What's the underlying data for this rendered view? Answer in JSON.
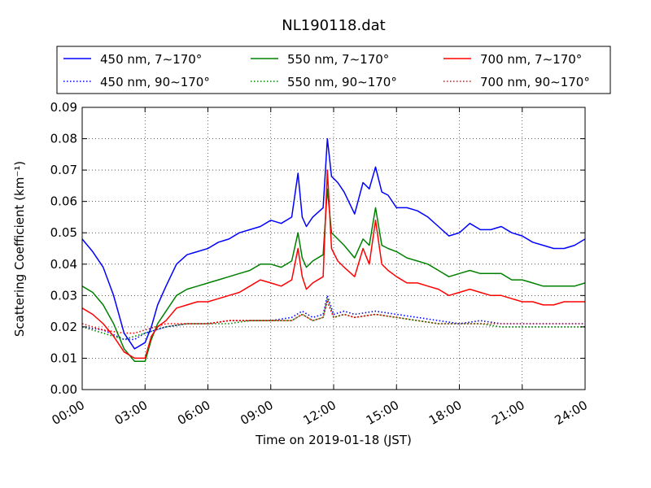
{
  "chart_data": {
    "type": "line",
    "title": "NL190118.dat",
    "xlabel": "Time on 2019-01-18 (JST)",
    "ylabel": "Scattering Coefficient (km⁻¹)",
    "xlim": [
      "00:00",
      "24:00"
    ],
    "ylim": [
      0,
      0.09
    ],
    "grid": true,
    "legend": "top",
    "x_ticks": [
      "00:00",
      "03:00",
      "06:00",
      "09:00",
      "12:00",
      "15:00",
      "18:00",
      "21:00",
      "24:00"
    ],
    "y_ticks": [
      "0.00",
      "0.01",
      "0.02",
      "0.03",
      "0.04",
      "0.05",
      "0.06",
      "0.07",
      "0.08",
      "0.09"
    ],
    "x_unit": "hours",
    "series": [
      {
        "name": "450 nm, 7∼170°",
        "color": "#0000ff",
        "style": "solid",
        "x": [
          0,
          0.5,
          1,
          1.5,
          2,
          2.5,
          3,
          3.3,
          3.6,
          4,
          4.5,
          5,
          5.5,
          6,
          6.5,
          7,
          7.5,
          8,
          8.5,
          9,
          9.5,
          10,
          10.3,
          10.5,
          10.7,
          11,
          11.5,
          11.7,
          11.9,
          12.2,
          12.5,
          13,
          13.4,
          13.7,
          14,
          14.3,
          14.6,
          15,
          15.5,
          16,
          16.5,
          17,
          17.5,
          18,
          18.5,
          19,
          19.5,
          20,
          20.5,
          21,
          21.5,
          22,
          22.5,
          23,
          23.5,
          24
        ],
        "values": [
          0.048,
          0.044,
          0.039,
          0.03,
          0.018,
          0.013,
          0.015,
          0.02,
          0.027,
          0.033,
          0.04,
          0.043,
          0.044,
          0.045,
          0.047,
          0.048,
          0.05,
          0.051,
          0.052,
          0.054,
          0.053,
          0.055,
          0.069,
          0.055,
          0.052,
          0.055,
          0.058,
          0.08,
          0.068,
          0.066,
          0.063,
          0.056,
          0.066,
          0.064,
          0.071,
          0.063,
          0.062,
          0.058,
          0.058,
          0.057,
          0.055,
          0.052,
          0.049,
          0.05,
          0.053,
          0.051,
          0.051,
          0.052,
          0.05,
          0.049,
          0.047,
          0.046,
          0.045,
          0.045,
          0.046,
          0.048
        ]
      },
      {
        "name": "550 nm, 7∼170°",
        "color": "#008000",
        "style": "solid",
        "x": [
          0,
          0.5,
          1,
          1.5,
          2,
          2.5,
          3,
          3.3,
          3.6,
          4,
          4.5,
          5,
          5.5,
          6,
          6.5,
          7,
          7.5,
          8,
          8.5,
          9,
          9.5,
          10,
          10.3,
          10.5,
          10.7,
          11,
          11.5,
          11.7,
          11.9,
          12.2,
          12.5,
          13,
          13.4,
          13.7,
          14,
          14.3,
          14.6,
          15,
          15.5,
          16,
          16.5,
          17,
          17.5,
          18,
          18.5,
          19,
          19.5,
          20,
          20.5,
          21,
          21.5,
          22,
          22.5,
          23,
          23.5,
          24
        ],
        "values": [
          0.033,
          0.031,
          0.027,
          0.021,
          0.013,
          0.009,
          0.009,
          0.016,
          0.021,
          0.025,
          0.03,
          0.032,
          0.033,
          0.034,
          0.035,
          0.036,
          0.037,
          0.038,
          0.04,
          0.04,
          0.039,
          0.041,
          0.05,
          0.042,
          0.039,
          0.041,
          0.043,
          0.064,
          0.05,
          0.048,
          0.046,
          0.042,
          0.048,
          0.046,
          0.058,
          0.046,
          0.045,
          0.044,
          0.042,
          0.041,
          0.04,
          0.038,
          0.036,
          0.037,
          0.038,
          0.037,
          0.037,
          0.037,
          0.035,
          0.035,
          0.034,
          0.033,
          0.033,
          0.033,
          0.033,
          0.034
        ]
      },
      {
        "name": "700 nm, 7∼170°",
        "color": "#ff0000",
        "style": "solid",
        "x": [
          0,
          0.5,
          1,
          1.5,
          2,
          2.5,
          3,
          3.3,
          3.6,
          4,
          4.5,
          5,
          5.5,
          6,
          6.5,
          7,
          7.5,
          8,
          8.5,
          9,
          9.5,
          10,
          10.3,
          10.5,
          10.7,
          11,
          11.5,
          11.7,
          11.9,
          12.2,
          12.5,
          13,
          13.4,
          13.7,
          14,
          14.3,
          14.6,
          15,
          15.5,
          16,
          16.5,
          17,
          17.5,
          18,
          18.5,
          19,
          19.5,
          20,
          20.5,
          21,
          21.5,
          22,
          22.5,
          23,
          23.5,
          24
        ],
        "values": [
          0.026,
          0.024,
          0.021,
          0.017,
          0.012,
          0.01,
          0.01,
          0.017,
          0.02,
          0.022,
          0.026,
          0.027,
          0.028,
          0.028,
          0.029,
          0.03,
          0.031,
          0.033,
          0.035,
          0.034,
          0.033,
          0.035,
          0.045,
          0.036,
          0.032,
          0.034,
          0.036,
          0.07,
          0.045,
          0.041,
          0.039,
          0.036,
          0.045,
          0.04,
          0.054,
          0.04,
          0.038,
          0.036,
          0.034,
          0.034,
          0.033,
          0.032,
          0.03,
          0.031,
          0.032,
          0.031,
          0.03,
          0.03,
          0.029,
          0.028,
          0.028,
          0.027,
          0.027,
          0.028,
          0.028,
          0.028
        ]
      },
      {
        "name": "450 nm, 90∼170°",
        "color": "#0000ff",
        "style": "dotted",
        "x": [
          0,
          1,
          2,
          2.5,
          3,
          4,
          5,
          6,
          7,
          8,
          9,
          10,
          10.5,
          11,
          11.5,
          11.7,
          12,
          12.5,
          13,
          14,
          15,
          16,
          17,
          18,
          19,
          20,
          21,
          22,
          23,
          24
        ],
        "values": [
          0.02,
          0.019,
          0.016,
          0.016,
          0.018,
          0.02,
          0.021,
          0.021,
          0.022,
          0.022,
          0.022,
          0.023,
          0.025,
          0.023,
          0.024,
          0.03,
          0.024,
          0.025,
          0.024,
          0.025,
          0.024,
          0.023,
          0.022,
          0.021,
          0.022,
          0.021,
          0.021,
          0.021,
          0.021,
          0.021
        ]
      },
      {
        "name": "550 nm, 90∼170°",
        "color": "#008000",
        "style": "dotted",
        "x": [
          0,
          1,
          2,
          2.5,
          3,
          4,
          5,
          6,
          7,
          8,
          9,
          10,
          10.5,
          11,
          11.5,
          11.7,
          12,
          12.5,
          13,
          14,
          15,
          16,
          17,
          18,
          19,
          20,
          21,
          22,
          23,
          24
        ],
        "values": [
          0.02,
          0.018,
          0.016,
          0.017,
          0.018,
          0.02,
          0.021,
          0.021,
          0.021,
          0.022,
          0.022,
          0.022,
          0.024,
          0.022,
          0.023,
          0.029,
          0.023,
          0.024,
          0.023,
          0.024,
          0.023,
          0.022,
          0.021,
          0.021,
          0.021,
          0.02,
          0.02,
          0.02,
          0.02,
          0.02
        ]
      },
      {
        "name": "700 nm, 90∼170°",
        "color": "#ff0000",
        "style": "dotted",
        "x": [
          0,
          1,
          2,
          2.5,
          3,
          4,
          5,
          6,
          7,
          8,
          9,
          10,
          10.5,
          11,
          11.5,
          11.7,
          12,
          12.5,
          13,
          14,
          15,
          16,
          17,
          18,
          19,
          20,
          21,
          22,
          23,
          24
        ],
        "values": [
          0.021,
          0.019,
          0.018,
          0.018,
          0.019,
          0.021,
          0.021,
          0.021,
          0.022,
          0.022,
          0.022,
          0.022,
          0.024,
          0.022,
          0.023,
          0.028,
          0.023,
          0.024,
          0.023,
          0.024,
          0.023,
          0.022,
          0.021,
          0.021,
          0.021,
          0.021,
          0.021,
          0.021,
          0.021,
          0.021
        ]
      }
    ]
  }
}
